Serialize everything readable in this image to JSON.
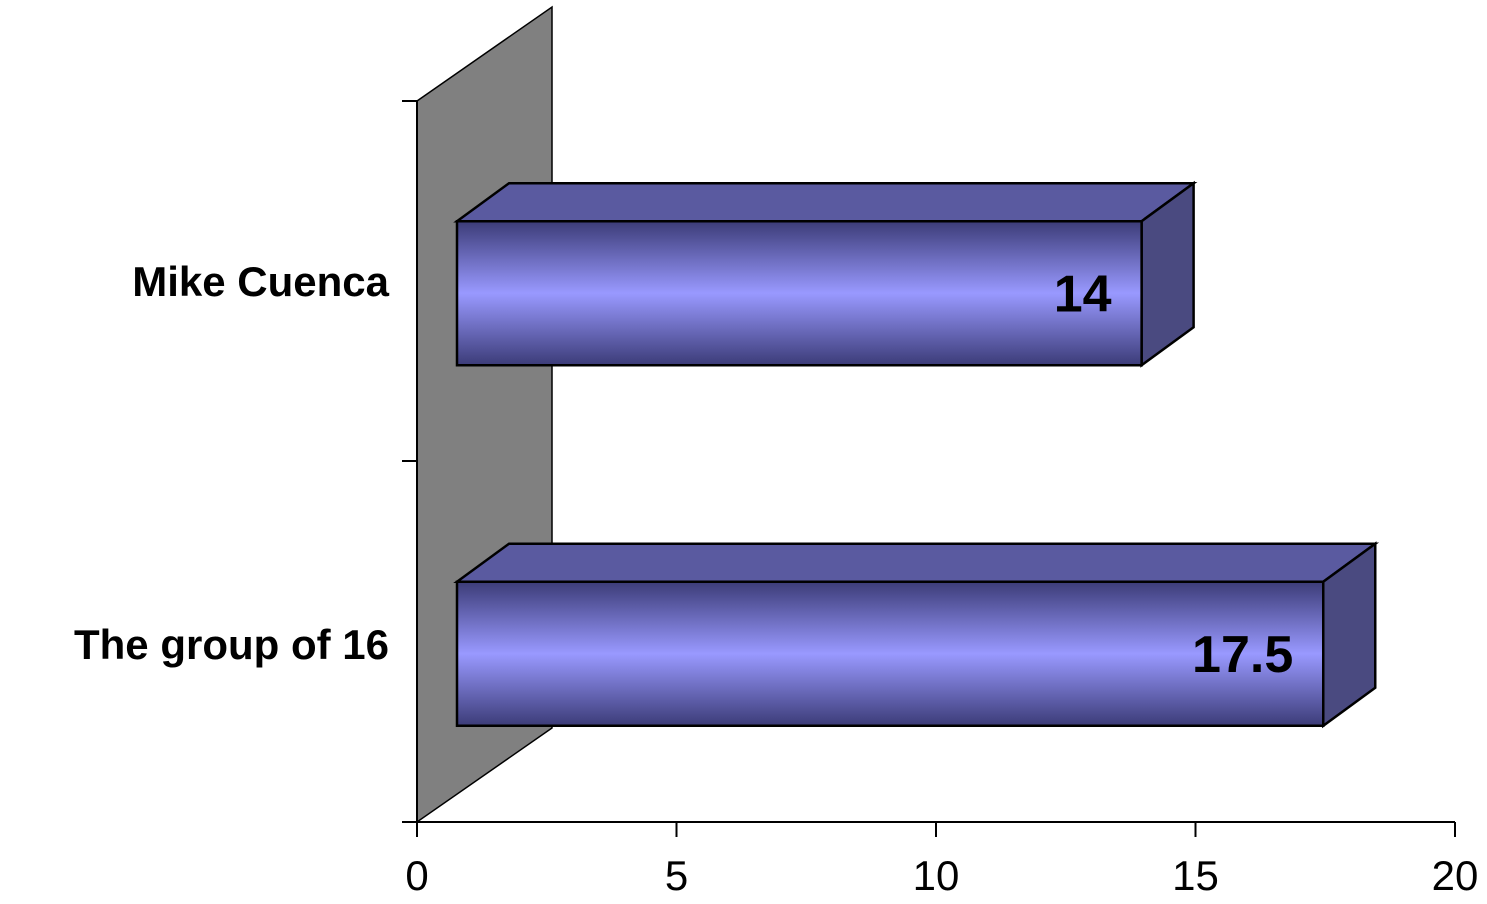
{
  "chart_data": {
    "type": "bar",
    "orientation": "horizontal",
    "style": "3d",
    "categories": [
      "Mike Cuenca",
      "The group of 16"
    ],
    "values": [
      14,
      17.5
    ],
    "data_labels": [
      "14",
      "17.5"
    ],
    "xlim": [
      0,
      20
    ],
    "x_ticks": [
      0,
      5,
      10,
      15,
      20
    ],
    "x_tick_labels": [
      "0",
      "5",
      "10",
      "15",
      "20"
    ],
    "grid": false,
    "legend": "none",
    "colors": {
      "bar_front_center": "#9999ff",
      "bar_front_edge": "#3c3c78",
      "bar_top": "#5a5aa0",
      "bar_side": "#4a4a80",
      "wall": "#808080",
      "outline": "#000000"
    }
  }
}
